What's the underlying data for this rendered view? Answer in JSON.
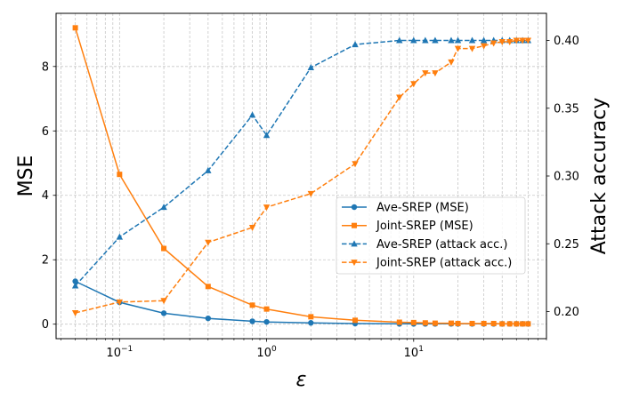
{
  "chart_data": {
    "type": "line",
    "xlabel": "ε",
    "ylabel_left": "MSE",
    "ylabel_right": "Attack accuracy",
    "x_scale": "log",
    "xlim": [
      0.037,
      80
    ],
    "ylim_left": [
      -0.45,
      9.65
    ],
    "ylim_right": [
      0.18,
      0.42
    ],
    "grid": true,
    "legend_position": "center-right",
    "x_ticks": [
      {
        "value": 0.1,
        "base": "10",
        "exp": "−1"
      },
      {
        "value": 1,
        "base": "10",
        "exp": "0"
      },
      {
        "value": 10,
        "base": "10",
        "exp": "1"
      }
    ],
    "y_ticks_left": [
      {
        "value": 0,
        "label": "0"
      },
      {
        "value": 2,
        "label": "2"
      },
      {
        "value": 4,
        "label": "4"
      },
      {
        "value": 6,
        "label": "6"
      },
      {
        "value": 8,
        "label": "8"
      }
    ],
    "y_ticks_right": [
      {
        "value": 0.2,
        "label": "0.20"
      },
      {
        "value": 0.25,
        "label": "0.25"
      },
      {
        "value": 0.3,
        "label": "0.30"
      },
      {
        "value": 0.35,
        "label": "0.35"
      },
      {
        "value": 0.4,
        "label": "0.40"
      }
    ],
    "series": [
      {
        "name": "Ave-SREP (MSE)",
        "axis": "left",
        "color": "#1f77b4",
        "linestyle": "solid",
        "marker": "circle",
        "x": [
          0.05,
          0.1,
          0.2,
          0.4,
          0.8,
          1,
          2,
          4,
          8,
          10,
          12,
          14,
          18,
          20,
          25,
          30,
          35,
          40,
          45,
          50,
          55,
          60
        ],
        "y": [
          1.33,
          0.68,
          0.34,
          0.18,
          0.09,
          0.07,
          0.04,
          0.02,
          0.01,
          0.01,
          0.01,
          0.01,
          0.01,
          0.01,
          0.01,
          0.01,
          0.01,
          0.01,
          0.01,
          0.01,
          0.01,
          0.01
        ]
      },
      {
        "name": "Joint-SREP (MSE)",
        "axis": "left",
        "color": "#ff7f0e",
        "linestyle": "solid",
        "marker": "square",
        "x": [
          0.05,
          0.1,
          0.2,
          0.4,
          0.8,
          1,
          2,
          4,
          8,
          10,
          12,
          14,
          18,
          20,
          25,
          30,
          35,
          40,
          45,
          50,
          55,
          60
        ],
        "y": [
          9.2,
          4.65,
          2.35,
          1.17,
          0.59,
          0.47,
          0.23,
          0.12,
          0.06,
          0.05,
          0.04,
          0.03,
          0.03,
          0.02,
          0.02,
          0.02,
          0.02,
          0.01,
          0.01,
          0.01,
          0.01,
          0.01
        ]
      },
      {
        "name": "Ave-SREP (attack acc.)",
        "axis": "right",
        "color": "#1f77b4",
        "linestyle": "dashed",
        "marker": "triangle-up",
        "x": [
          0.05,
          0.1,
          0.2,
          0.4,
          0.8,
          1,
          2,
          4,
          8,
          10,
          12,
          14,
          18,
          20,
          25,
          30,
          35,
          40,
          45,
          50,
          55,
          60
        ],
        "y": [
          0.219,
          0.255,
          0.277,
          0.304,
          0.345,
          0.33,
          0.38,
          0.397,
          0.4,
          0.4,
          0.4,
          0.4,
          0.4,
          0.4,
          0.4,
          0.4,
          0.4,
          0.4,
          0.4,
          0.4,
          0.4,
          0.4
        ]
      },
      {
        "name": "Joint-SREP (attack acc.)",
        "axis": "right",
        "color": "#ff7f0e",
        "linestyle": "dashed",
        "marker": "triangle-down",
        "x": [
          0.05,
          0.1,
          0.2,
          0.4,
          0.8,
          1,
          2,
          4,
          8,
          10,
          12,
          14,
          18,
          20,
          25,
          30,
          35,
          40,
          45,
          50,
          55,
          60
        ],
        "y": [
          0.199,
          0.207,
          0.208,
          0.251,
          0.262,
          0.277,
          0.287,
          0.309,
          0.358,
          0.368,
          0.376,
          0.376,
          0.384,
          0.394,
          0.394,
          0.396,
          0.398,
          0.399,
          0.399,
          0.4,
          0.4,
          0.4
        ]
      }
    ]
  }
}
